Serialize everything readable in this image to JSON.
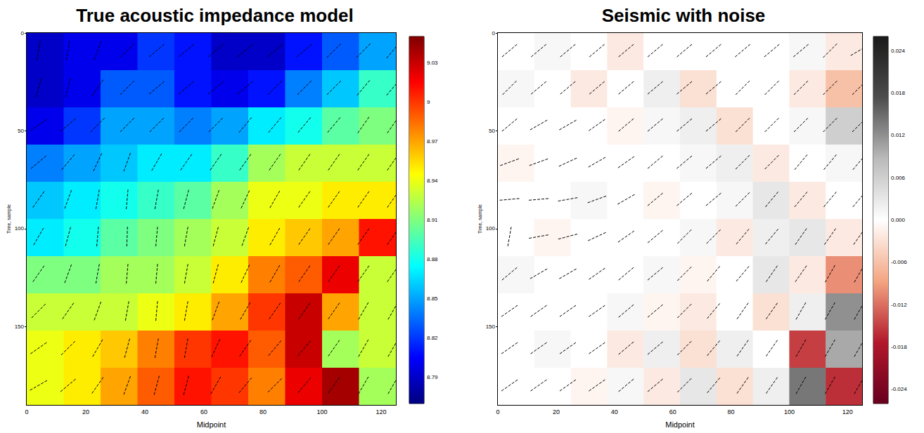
{
  "chart_data": [
    {
      "type": "heatmap",
      "title": "True acoustic impedance model",
      "x_label": "Midpoint",
      "y_label": "Time, sample",
      "xlim": [
        0,
        125
      ],
      "xticks": [
        0,
        20,
        40,
        60,
        80,
        100,
        120
      ],
      "ylim": [
        0,
        190
      ],
      "yticks": [
        0,
        50,
        100,
        150
      ],
      "x_edges": [
        0,
        12.5,
        25,
        37.5,
        50,
        62.5,
        75,
        87.5,
        100,
        112.5,
        125
      ],
      "y_edges": [
        0,
        19,
        38,
        57,
        76,
        95,
        114,
        133,
        152,
        171,
        190
      ],
      "values": [
        [
          8.79,
          8.8,
          8.8,
          8.82,
          8.81,
          8.79,
          8.79,
          8.81,
          8.83,
          8.85
        ],
        [
          8.79,
          8.8,
          8.83,
          8.83,
          8.81,
          8.8,
          8.81,
          8.84,
          8.86,
          8.89
        ],
        [
          8.8,
          8.82,
          8.85,
          8.85,
          8.84,
          8.85,
          8.87,
          8.88,
          8.9,
          8.91
        ],
        [
          8.84,
          8.85,
          8.86,
          8.87,
          8.87,
          8.89,
          8.92,
          8.93,
          8.93,
          8.93
        ],
        [
          8.86,
          8.87,
          8.88,
          8.89,
          8.9,
          8.92,
          8.94,
          8.94,
          8.95,
          8.95
        ],
        [
          8.87,
          8.88,
          8.9,
          8.91,
          8.92,
          8.93,
          8.95,
          8.96,
          8.97,
          9.01
        ],
        [
          8.91,
          8.91,
          8.92,
          8.92,
          8.93,
          8.95,
          8.98,
          8.99,
          9.02,
          8.93
        ],
        [
          8.93,
          8.93,
          8.93,
          8.94,
          8.95,
          8.97,
          9.0,
          9.03,
          8.97,
          8.93
        ],
        [
          8.94,
          8.95,
          8.96,
          8.98,
          9.0,
          9.01,
          8.99,
          9.03,
          8.92,
          8.93
        ],
        [
          8.94,
          8.95,
          8.97,
          8.99,
          9.01,
          9.0,
          8.98,
          9.02,
          9.04,
          8.92
        ]
      ],
      "colorbar_range": [
        8.77,
        9.05
      ],
      "colorbar_ticks": [
        8.79,
        8.82,
        8.85,
        8.88,
        8.91,
        8.94,
        8.97,
        9.0,
        9.03
      ],
      "dip_x": [
        4,
        14,
        24,
        34,
        44,
        54,
        64,
        74,
        84,
        94,
        104,
        114,
        124
      ],
      "dip_y": [
        9,
        28,
        47,
        66,
        85,
        104,
        123,
        142,
        161,
        180
      ],
      "dip_angles": [
        [
          80,
          80,
          70,
          45,
          40,
          40,
          40,
          40,
          40,
          40,
          45,
          45,
          50
        ],
        [
          75,
          75,
          55,
          45,
          40,
          40,
          40,
          40,
          45,
          45,
          45,
          50,
          50
        ],
        [
          35,
          40,
          45,
          45,
          45,
          45,
          45,
          50,
          50,
          50,
          50,
          55,
          55
        ],
        [
          40,
          50,
          65,
          70,
          60,
          55,
          55,
          55,
          55,
          55,
          55,
          55,
          55
        ],
        [
          55,
          70,
          80,
          85,
          80,
          75,
          70,
          65,
          60,
          55,
          55,
          55,
          55
        ],
        [
          60,
          75,
          85,
          88,
          85,
          80,
          75,
          70,
          60,
          55,
          55,
          55,
          55
        ],
        [
          55,
          70,
          80,
          85,
          85,
          80,
          75,
          65,
          60,
          55,
          55,
          55,
          55
        ],
        [
          45,
          55,
          70,
          80,
          85,
          80,
          70,
          60,
          55,
          55,
          55,
          60,
          60
        ],
        [
          35,
          45,
          60,
          75,
          80,
          80,
          65,
          55,
          50,
          50,
          55,
          60,
          60
        ],
        [
          30,
          40,
          55,
          70,
          75,
          75,
          60,
          50,
          45,
          50,
          55,
          60,
          60
        ]
      ]
    },
    {
      "type": "heatmap",
      "title": "Seismic with noise",
      "x_label": "Midpoint",
      "y_label": "Time, sample",
      "xlim": [
        0,
        125
      ],
      "xticks": [
        0,
        20,
        40,
        60,
        80,
        100,
        120
      ],
      "ylim": [
        0,
        190
      ],
      "yticks": [
        0,
        50,
        100,
        150
      ],
      "x_edges": [
        0,
        12.5,
        25,
        37.5,
        50,
        62.5,
        75,
        87.5,
        100,
        112.5,
        125
      ],
      "y_edges": [
        0,
        19,
        38,
        57,
        76,
        95,
        114,
        133,
        152,
        171,
        190
      ],
      "values": [
        [
          0,
          0.001,
          0,
          -0.002,
          0,
          0,
          0,
          0,
          0.001,
          -0.002
        ],
        [
          0.001,
          0,
          -0.002,
          0,
          0.002,
          -0.003,
          0,
          0,
          -0.002,
          -0.006
        ],
        [
          0,
          0,
          0,
          -0.001,
          0.001,
          0.002,
          -0.003,
          0,
          0.001,
          0.006
        ],
        [
          -0.001,
          0,
          0,
          0,
          0,
          0.001,
          0.002,
          -0.002,
          0,
          0.001
        ],
        [
          0,
          0,
          0.001,
          0,
          -0.001,
          0,
          0.001,
          0.003,
          -0.002,
          0
        ],
        [
          0,
          -0.001,
          0,
          0,
          0,
          0.001,
          -0.002,
          0.002,
          0.003,
          -0.002
        ],
        [
          0.001,
          0,
          0,
          0,
          0.001,
          -0.001,
          0,
          0.003,
          -0.002,
          -0.01
        ],
        [
          0,
          0,
          0,
          0.001,
          -0.001,
          -0.002,
          0,
          -0.003,
          0.002,
          0.012
        ],
        [
          0,
          0.001,
          0,
          -0.002,
          0.002,
          -0.003,
          0.002,
          0,
          -0.015,
          0.01
        ],
        [
          0,
          0,
          -0.001,
          0.001,
          -0.002,
          0.003,
          -0.003,
          0.002,
          0.014,
          -0.016
        ]
      ],
      "colorbar_range": [
        -0.026,
        0.026
      ],
      "colorbar_ticks": [
        -0.024,
        -0.018,
        -0.012,
        -0.006,
        {
          "value": 0,
          "label": "0.000"
        },
        0.006,
        0.012,
        0.018,
        0.024
      ],
      "dip_x": [
        4,
        14,
        24,
        34,
        44,
        54,
        64,
        74,
        84,
        94,
        104,
        114,
        124
      ],
      "dip_y": [
        9,
        28,
        47,
        66,
        85,
        104,
        123,
        142,
        161,
        180
      ],
      "dip_angles": [
        [
          40,
          40,
          40,
          40,
          40,
          40,
          40,
          40,
          40,
          40,
          40,
          45,
          30
        ],
        [
          45,
          40,
          40,
          40,
          40,
          40,
          40,
          40,
          45,
          45,
          45,
          45,
          45
        ],
        [
          40,
          30,
          30,
          35,
          40,
          40,
          40,
          40,
          45,
          45,
          45,
          45,
          45
        ],
        [
          20,
          20,
          25,
          30,
          35,
          40,
          40,
          40,
          45,
          45,
          50,
          50,
          50
        ],
        [
          5,
          5,
          10,
          20,
          30,
          40,
          40,
          40,
          45,
          50,
          50,
          50,
          50
        ],
        [
          80,
          10,
          15,
          25,
          35,
          40,
          45,
          45,
          50,
          50,
          55,
          55,
          55
        ],
        [
          40,
          30,
          30,
          35,
          40,
          40,
          45,
          50,
          50,
          55,
          55,
          60,
          60
        ],
        [
          35,
          35,
          35,
          35,
          40,
          40,
          45,
          50,
          55,
          55,
          60,
          60,
          60
        ],
        [
          35,
          35,
          35,
          35,
          40,
          40,
          45,
          50,
          55,
          55,
          60,
          60,
          60
        ],
        [
          35,
          35,
          35,
          35,
          40,
          40,
          45,
          50,
          55,
          55,
          60,
          60,
          60
        ]
      ]
    }
  ]
}
